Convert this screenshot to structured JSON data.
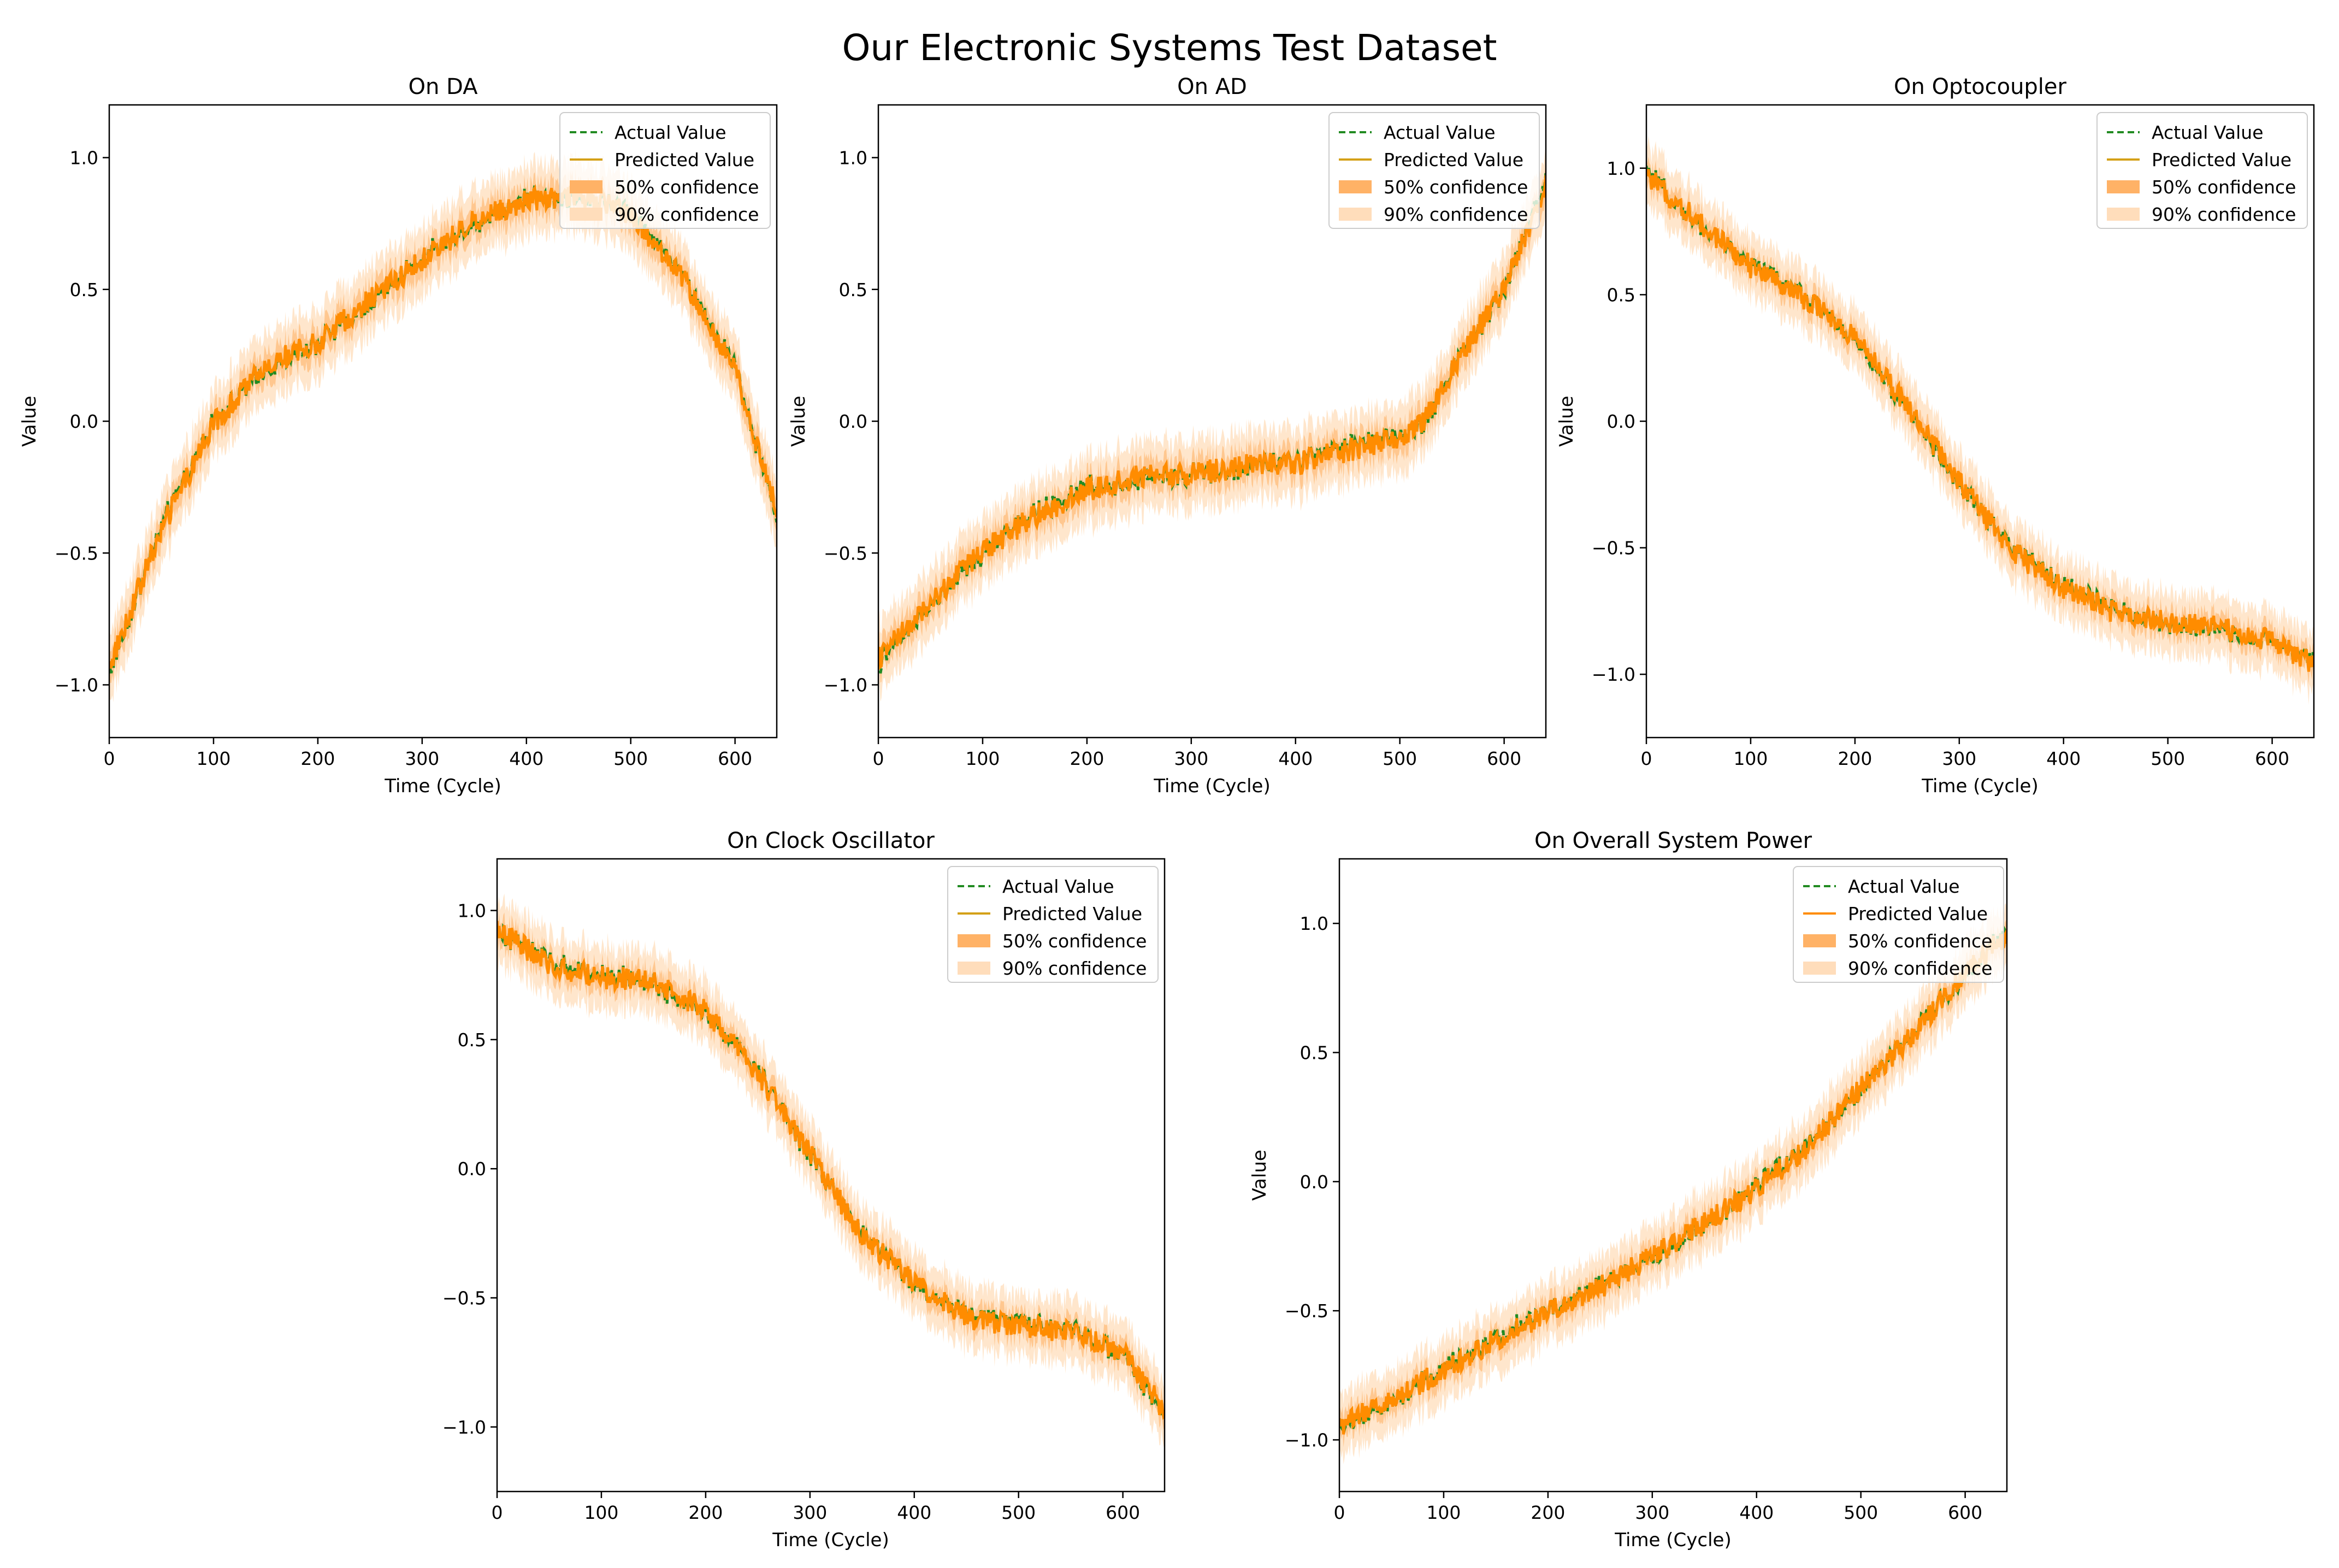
{
  "figure": {
    "title": "Our Electronic Systems Test Dataset"
  },
  "colors": {
    "actual": "#228B22",
    "predicted": "#FF8C00",
    "predicted_legend_da": "#D4A017",
    "band50": "#FFB266",
    "band90": "#FFDDBB"
  },
  "legend": {
    "actual": "Actual Value",
    "predicted": "Predicted Value",
    "c50": "50% confidence",
    "c90": "90% confidence"
  },
  "chart_data": [
    {
      "type": "line",
      "title": "On DA",
      "xlabel": "Time (Cycle)",
      "ylabel": "Value",
      "xlim": [
        0,
        640
      ],
      "ylim": [
        -1.2,
        1.2
      ],
      "xticks": [
        0,
        100,
        200,
        300,
        400,
        500,
        600
      ],
      "yticks": [
        -1.0,
        -0.5,
        0.0,
        0.5,
        1.0
      ],
      "xtick_labels": [
        "0",
        "100",
        "200",
        "300",
        "400",
        "500",
        "600"
      ],
      "ytick_labels": [
        "−1.0",
        "−0.5",
        "0.0",
        "0.5",
        "1.0"
      ],
      "legend_position": "top-right",
      "series": [
        {
          "name": "Actual Value",
          "x": [
            0,
            50,
            100,
            150,
            200,
            250,
            300,
            350,
            400,
            450,
            500,
            550,
            600,
            640
          ],
          "values": [
            -0.95,
            -0.4,
            0.0,
            0.2,
            0.3,
            0.45,
            0.62,
            0.75,
            0.85,
            0.85,
            0.8,
            0.55,
            0.2,
            -0.35
          ]
        },
        {
          "name": "Predicted Value",
          "x": [
            0,
            50,
            100,
            150,
            200,
            250,
            300,
            350,
            400,
            450,
            500,
            550,
            600,
            640
          ],
          "values": [
            -0.93,
            -0.41,
            -0.01,
            0.21,
            0.3,
            0.46,
            0.61,
            0.76,
            0.84,
            0.86,
            0.79,
            0.54,
            0.19,
            -0.33
          ]
        }
      ],
      "confidence": {
        "band50_halfwidth": 0.06,
        "band90_halfwidth": 0.13
      }
    },
    {
      "type": "line",
      "title": "On AD",
      "xlabel": "Time (Cycle)",
      "ylabel": "Value",
      "xlim": [
        0,
        640
      ],
      "ylim": [
        -1.2,
        1.2
      ],
      "xticks": [
        0,
        100,
        200,
        300,
        400,
        500,
        600
      ],
      "yticks": [
        -1.0,
        -0.5,
        0.0,
        0.5,
        1.0
      ],
      "xtick_labels": [
        "0",
        "100",
        "200",
        "300",
        "400",
        "500",
        "600"
      ],
      "ytick_labels": [
        "−1.0",
        "−0.5",
        "0.0",
        "0.5",
        "1.0"
      ],
      "legend_position": "top-right",
      "series": [
        {
          "name": "Actual Value",
          "x": [
            0,
            50,
            100,
            150,
            200,
            250,
            300,
            350,
            400,
            450,
            500,
            525,
            550,
            600,
            640
          ],
          "values": [
            -0.92,
            -0.7,
            -0.5,
            -0.35,
            -0.25,
            -0.22,
            -0.2,
            -0.18,
            -0.15,
            -0.1,
            -0.05,
            0.0,
            0.2,
            0.5,
            0.92
          ]
        },
        {
          "name": "Predicted Value",
          "x": [
            0,
            50,
            100,
            150,
            200,
            250,
            300,
            350,
            400,
            450,
            500,
            525,
            550,
            600,
            640
          ],
          "values": [
            -0.9,
            -0.69,
            -0.49,
            -0.36,
            -0.26,
            -0.21,
            -0.2,
            -0.17,
            -0.16,
            -0.11,
            -0.06,
            0.01,
            0.19,
            0.51,
            0.9
          ]
        }
      ],
      "confidence": {
        "band50_halfwidth": 0.06,
        "band90_halfwidth": 0.13
      }
    },
    {
      "type": "line",
      "title": "On Optocoupler",
      "xlabel": "Time (Cycle)",
      "ylabel": "Value",
      "xlim": [
        0,
        640
      ],
      "ylim": [
        -1.25,
        1.25
      ],
      "xticks": [
        0,
        100,
        200,
        300,
        400,
        500,
        600
      ],
      "yticks": [
        -1.0,
        -0.5,
        0.0,
        0.5,
        1.0
      ],
      "xtick_labels": [
        "0",
        "100",
        "200",
        "300",
        "400",
        "500",
        "600"
      ],
      "ytick_labels": [
        "−1.0",
        "−0.5",
        "0.0",
        "0.5",
        "1.0"
      ],
      "legend_position": "top-right",
      "series": [
        {
          "name": "Actual Value",
          "x": [
            0,
            50,
            100,
            150,
            200,
            250,
            300,
            350,
            400,
            450,
            500,
            550,
            600,
            640
          ],
          "values": [
            0.98,
            0.78,
            0.62,
            0.5,
            0.32,
            0.05,
            -0.25,
            -0.5,
            -0.65,
            -0.75,
            -0.8,
            -0.82,
            -0.88,
            -0.95
          ]
        },
        {
          "name": "Predicted Value",
          "x": [
            0,
            50,
            100,
            150,
            200,
            250,
            300,
            350,
            400,
            450,
            500,
            550,
            600,
            640
          ],
          "values": [
            0.97,
            0.79,
            0.61,
            0.49,
            0.33,
            0.06,
            -0.24,
            -0.51,
            -0.66,
            -0.76,
            -0.79,
            -0.81,
            -0.87,
            -0.96
          ]
        }
      ],
      "confidence": {
        "band50_halfwidth": 0.05,
        "band90_halfwidth": 0.12
      }
    },
    {
      "type": "line",
      "title": "On Clock Oscillator",
      "xlabel": "Time (Cycle)",
      "ylabel": "",
      "xlim": [
        0,
        640
      ],
      "ylim": [
        -1.25,
        1.2
      ],
      "xticks": [
        0,
        100,
        200,
        300,
        400,
        500,
        600
      ],
      "yticks": [
        -1.0,
        -0.5,
        0.0,
        0.5,
        1.0
      ],
      "xtick_labels": [
        "0",
        "100",
        "200",
        "300",
        "400",
        "500",
        "600"
      ],
      "ytick_labels": [
        "−1.0",
        "−0.5",
        "0.0",
        "0.5",
        "1.0"
      ],
      "legend_position": "top-right",
      "series": [
        {
          "name": "Actual Value",
          "x": [
            0,
            50,
            100,
            150,
            200,
            250,
            300,
            350,
            400,
            450,
            500,
            550,
            600,
            640
          ],
          "values": [
            0.92,
            0.8,
            0.75,
            0.72,
            0.6,
            0.38,
            0.05,
            -0.25,
            -0.45,
            -0.57,
            -0.6,
            -0.62,
            -0.72,
            -0.95
          ]
        },
        {
          "name": "Predicted Value",
          "x": [
            0,
            50,
            100,
            150,
            200,
            250,
            300,
            350,
            400,
            450,
            500,
            550,
            600,
            640
          ],
          "values": [
            0.93,
            0.79,
            0.74,
            0.73,
            0.61,
            0.37,
            0.06,
            -0.26,
            -0.44,
            -0.58,
            -0.61,
            -0.63,
            -0.71,
            -0.94
          ]
        }
      ],
      "confidence": {
        "band50_halfwidth": 0.05,
        "band90_halfwidth": 0.12
      }
    },
    {
      "type": "line",
      "title": "On Overall System Power",
      "xlabel": "Time (Cycle)",
      "ylabel": "Value",
      "xlim": [
        0,
        640
      ],
      "ylim": [
        -1.2,
        1.25
      ],
      "xticks": [
        0,
        100,
        200,
        300,
        400,
        500,
        600
      ],
      "yticks": [
        -1.0,
        -0.5,
        0.0,
        0.5,
        1.0
      ],
      "xtick_labels": [
        "0",
        "100",
        "200",
        "300",
        "400",
        "500",
        "600"
      ],
      "ytick_labels": [
        "−1.0",
        "−0.5",
        "0.0",
        "0.5",
        "1.0"
      ],
      "legend_position": "top-left",
      "series": [
        {
          "name": "Actual Value",
          "x": [
            0,
            50,
            100,
            150,
            200,
            250,
            300,
            350,
            400,
            450,
            500,
            550,
            600,
            640
          ],
          "values": [
            -0.96,
            -0.85,
            -0.72,
            -0.6,
            -0.5,
            -0.4,
            -0.3,
            -0.17,
            -0.02,
            0.15,
            0.35,
            0.58,
            0.8,
            0.97
          ]
        },
        {
          "name": "Predicted Value",
          "x": [
            0,
            50,
            100,
            150,
            200,
            250,
            300,
            350,
            400,
            450,
            500,
            550,
            600,
            640
          ],
          "values": [
            -0.95,
            -0.84,
            -0.73,
            -0.61,
            -0.51,
            -0.41,
            -0.29,
            -0.16,
            -0.03,
            0.14,
            0.36,
            0.57,
            0.81,
            0.96
          ]
        }
      ],
      "confidence": {
        "band50_halfwidth": 0.05,
        "band90_halfwidth": 0.12
      }
    }
  ]
}
